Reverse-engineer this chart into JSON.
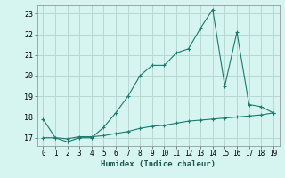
{
  "xlabel": "Humidex (Indice chaleur)",
  "x": [
    0,
    1,
    2,
    3,
    4,
    5,
    6,
    7,
    8,
    9,
    10,
    11,
    12,
    13,
    14,
    15,
    16,
    17,
    18,
    19
  ],
  "line1_y": [
    17.9,
    17.0,
    16.8,
    17.0,
    17.0,
    17.5,
    18.2,
    19.0,
    20.0,
    20.5,
    20.5,
    21.1,
    21.3,
    22.3,
    23.2,
    19.5,
    22.1,
    18.6,
    18.5,
    18.2
  ],
  "line2_y": [
    17.0,
    17.0,
    16.95,
    17.05,
    17.05,
    17.1,
    17.2,
    17.3,
    17.45,
    17.55,
    17.6,
    17.7,
    17.8,
    17.85,
    17.9,
    17.95,
    18.0,
    18.05,
    18.1,
    18.2
  ],
  "line_color": "#1a7a6e",
  "bg_color": "#d6f5f0",
  "grid_color": "#b8d8d4",
  "ylim": [
    16.6,
    23.4
  ],
  "xlim": [
    -0.5,
    19.5
  ],
  "yticks": [
    17,
    18,
    19,
    20,
    21,
    22,
    23
  ],
  "xticks": [
    0,
    1,
    2,
    3,
    4,
    5,
    6,
    7,
    8,
    9,
    10,
    11,
    12,
    13,
    14,
    15,
    16,
    17,
    18,
    19
  ]
}
